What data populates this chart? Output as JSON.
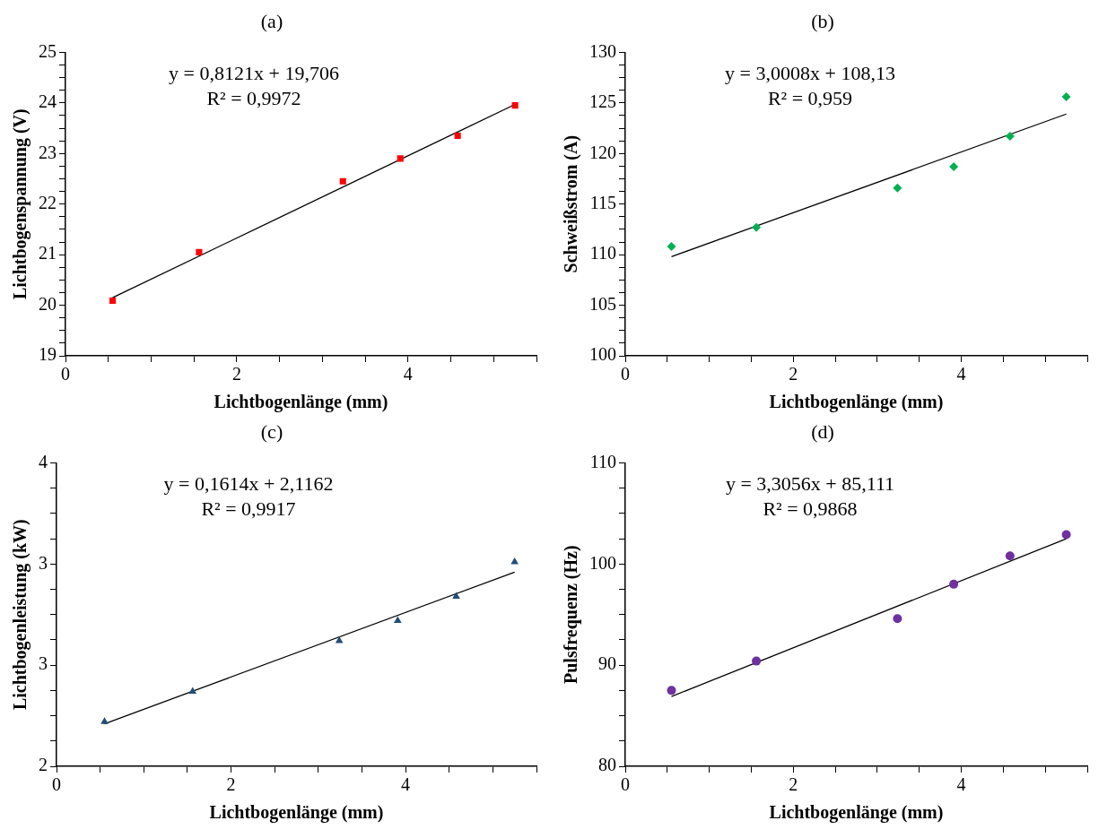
{
  "chart_data": [
    {
      "type": "scatter",
      "title": "(a)",
      "xlabel": "Lichtbogenlänge (mm)",
      "ylabel": "Lichtbogenspannung (V)",
      "xlim": [
        0,
        5.5
      ],
      "xticks": [
        0,
        {
          "value": 0.5,
          "label": null
        },
        {
          "value": 1,
          "label": null
        },
        {
          "value": 1.5,
          "label": null
        },
        2,
        {
          "value": 2.5,
          "label": null
        },
        {
          "value": 3,
          "label": null
        },
        {
          "value": 3.5,
          "label": null
        },
        4,
        {
          "value": 4.5,
          "label": null
        },
        {
          "value": 5,
          "label": null
        },
        {
          "value": 5.5,
          "label": null
        }
      ],
      "ylim": [
        19,
        25
      ],
      "yticks": [
        19,
        {
          "value": 19.25,
          "label": null
        },
        {
          "value": 19.5,
          "label": null
        },
        {
          "value": 19.75,
          "label": null
        },
        20,
        {
          "value": 20.25,
          "label": null
        },
        {
          "value": 20.5,
          "label": null
        },
        {
          "value": 20.75,
          "label": null
        },
        21,
        {
          "value": 21.25,
          "label": null
        },
        {
          "value": 21.5,
          "label": null
        },
        {
          "value": 21.75,
          "label": null
        },
        22,
        {
          "value": 22.25,
          "label": null
        },
        {
          "value": 22.5,
          "label": null
        },
        {
          "value": 22.75,
          "label": null
        },
        23,
        {
          "value": 23.25,
          "label": null
        },
        {
          "value": 23.5,
          "label": null
        },
        {
          "value": 23.75,
          "label": null
        },
        24,
        {
          "value": 24.25,
          "label": null
        },
        {
          "value": 24.5,
          "label": null
        },
        {
          "value": 24.75,
          "label": null
        },
        25
      ],
      "annotations": [
        "y = 0,8121x + 19,706",
        "R² = 0,9972"
      ],
      "series": [
        {
          "marker": "square",
          "color": "#ff0000",
          "x": [
            0.55,
            1.56,
            3.24,
            3.91,
            4.58,
            5.25
          ],
          "values": [
            20.09,
            21.05,
            22.45,
            22.9,
            23.35,
            23.95
          ]
        },
        {
          "type": "line",
          "marker": "none",
          "color": "#000000",
          "x": [
            0.55,
            5.25
          ],
          "values": [
            20.15,
            23.97
          ]
        }
      ]
    },
    {
      "type": "scatter",
      "title": "(b)",
      "xlabel": "Lichtbogenlänge (mm)",
      "ylabel": "Schweißstrom (A)",
      "xlim": [
        0,
        5.5
      ],
      "xticks": [
        0,
        {
          "value": 0.5,
          "label": null
        },
        {
          "value": 1,
          "label": null
        },
        {
          "value": 1.5,
          "label": null
        },
        2,
        {
          "value": 2.5,
          "label": null
        },
        {
          "value": 3,
          "label": null
        },
        {
          "value": 3.5,
          "label": null
        },
        4,
        {
          "value": 4.5,
          "label": null
        },
        {
          "value": 5,
          "label": null
        },
        {
          "value": 5.5,
          "label": null
        }
      ],
      "ylim": [
        100,
        130
      ],
      "yticks": [
        100,
        {
          "value": 101.25,
          "label": null
        },
        {
          "value": 102.5,
          "label": null
        },
        {
          "value": 103.75,
          "label": null
        },
        105,
        {
          "value": 106.25,
          "label": null
        },
        {
          "value": 107.5,
          "label": null
        },
        {
          "value": 108.75,
          "label": null
        },
        110,
        {
          "value": 111.25,
          "label": null
        },
        {
          "value": 112.5,
          "label": null
        },
        {
          "value": 113.75,
          "label": null
        },
        115,
        {
          "value": 116.25,
          "label": null
        },
        {
          "value": 117.5,
          "label": null
        },
        {
          "value": 118.75,
          "label": null
        },
        120,
        {
          "value": 121.25,
          "label": null
        },
        {
          "value": 122.5,
          "label": null
        },
        {
          "value": 123.75,
          "label": null
        },
        125,
        {
          "value": 126.25,
          "label": null
        },
        {
          "value": 127.5,
          "label": null
        },
        {
          "value": 128.75,
          "label": null
        },
        130
      ],
      "annotations": [
        "y = 3,0008x + 108,13",
        "R² = 0,959"
      ],
      "series": [
        {
          "marker": "diamond",
          "color": "#00b050",
          "x": [
            0.55,
            1.56,
            3.24,
            3.91,
            4.58,
            5.25
          ],
          "values": [
            110.8,
            112.7,
            116.6,
            118.7,
            121.7,
            125.6
          ]
        },
        {
          "type": "line",
          "marker": "none",
          "color": "#000000",
          "x": [
            0.55,
            5.25
          ],
          "values": [
            109.8,
            123.9
          ]
        }
      ]
    },
    {
      "type": "scatter",
      "title": "(c)",
      "xlabel": "Lichtbogenlänge (mm)",
      "ylabel": "Lichtbogenleistung (kW)",
      "xlim": [
        0,
        5.5
      ],
      "xticks": [
        0,
        {
          "value": 0.5,
          "label": null
        },
        {
          "value": 1,
          "label": null
        },
        {
          "value": 1.5,
          "label": null
        },
        2,
        {
          "value": 2.5,
          "label": null
        },
        {
          "value": 3,
          "label": null
        },
        {
          "value": 3.5,
          "label": null
        },
        4,
        {
          "value": 4.5,
          "label": null
        },
        {
          "value": 5,
          "label": null
        },
        {
          "value": 5.5,
          "label": null
        }
      ],
      "ylim": [
        2,
        3.5
      ],
      "yticks": [
        2,
        {
          "value": 2.125,
          "label": null
        },
        {
          "value": 2.25,
          "label": null
        },
        {
          "value": 2.375,
          "label": null
        },
        {
          "value": 2.5,
          "label": "3"
        },
        {
          "value": 2.625,
          "label": null
        },
        {
          "value": 2.75,
          "label": null
        },
        {
          "value": 2.875,
          "label": null
        },
        3,
        {
          "value": 3.125,
          "label": null
        },
        {
          "value": 3.25,
          "label": null
        },
        {
          "value": 3.375,
          "label": null
        },
        {
          "value": 3.5,
          "label": "4"
        }
      ],
      "annotations": [
        "y = 0,1614x + 2,1162",
        "R² = 0,9917"
      ],
      "series": [
        {
          "marker": "triangle",
          "color": "#1f4e79",
          "x": [
            0.55,
            1.56,
            3.24,
            3.91,
            4.58,
            5.25
          ],
          "values": [
            2.22,
            2.37,
            2.62,
            2.72,
            2.84,
            3.01
          ]
        },
        {
          "type": "line",
          "marker": "none",
          "color": "#000000",
          "x": [
            0.55,
            5.25
          ],
          "values": [
            2.21,
            2.96
          ]
        }
      ]
    },
    {
      "type": "scatter",
      "title": "(d)",
      "xlabel": "Lichtbogenlänge (mm)",
      "ylabel": "Pulsfrequenz (Hz)",
      "xlim": [
        0,
        5.5
      ],
      "xticks": [
        0,
        {
          "value": 0.5,
          "label": null
        },
        {
          "value": 1,
          "label": null
        },
        {
          "value": 1.5,
          "label": null
        },
        2,
        {
          "value": 2.5,
          "label": null
        },
        {
          "value": 3,
          "label": null
        },
        {
          "value": 3.5,
          "label": null
        },
        4,
        {
          "value": 4.5,
          "label": null
        },
        {
          "value": 5,
          "label": null
        },
        {
          "value": 5.5,
          "label": null
        }
      ],
      "ylim": [
        80,
        110
      ],
      "yticks": [
        80,
        {
          "value": 82.5,
          "label": null
        },
        {
          "value": 85,
          "label": null
        },
        {
          "value": 87.5,
          "label": null
        },
        90,
        {
          "value": 92.5,
          "label": null
        },
        {
          "value": 95,
          "label": null
        },
        {
          "value": 97.5,
          "label": null
        },
        100,
        {
          "value": 102.5,
          "label": null
        },
        {
          "value": 105,
          "label": null
        },
        {
          "value": 107.5,
          "label": null
        },
        110
      ],
      "annotations": [
        "y = 3,3056x + 85,111",
        "R² = 0,9868"
      ],
      "series": [
        {
          "marker": "circle",
          "color": "#7030a0",
          "x": [
            0.55,
            1.56,
            3.24,
            3.91,
            4.58,
            5.25
          ],
          "values": [
            87.5,
            90.4,
            94.6,
            98.0,
            100.8,
            102.9
          ]
        },
        {
          "type": "line",
          "marker": "none",
          "color": "#000000",
          "x": [
            0.55,
            5.25
          ],
          "values": [
            86.9,
            102.5
          ]
        }
      ]
    }
  ]
}
